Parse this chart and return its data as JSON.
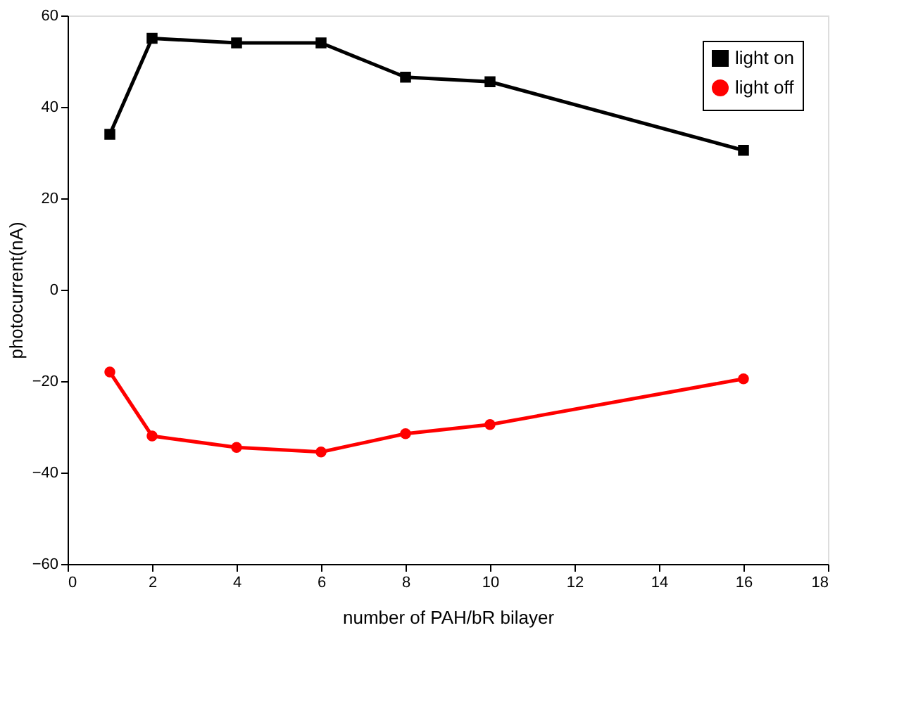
{
  "chart_data": {
    "type": "line",
    "xlabel": "number of PAH/bR bilayer",
    "ylabel": "photocurrent(nA)",
    "x": [
      1,
      2,
      4,
      6,
      8,
      10,
      16
    ],
    "series": [
      {
        "name": "light on",
        "color": "#000000",
        "marker": "square",
        "values": [
          34,
          55,
          54,
          54,
          46.5,
          45.5,
          30.5
        ]
      },
      {
        "name": "light off",
        "color": "#ff0000",
        "marker": "circle",
        "values": [
          -18,
          -32,
          -34.5,
          -35.5,
          -31.5,
          -29.5,
          -19.5
        ]
      }
    ],
    "xlim": [
      0,
      18
    ],
    "xticks": [
      0,
      2,
      4,
      6,
      8,
      10,
      12,
      14,
      16,
      18
    ],
    "ylim": [
      -60,
      60
    ],
    "yticks": [
      -60,
      -40,
      -20,
      0,
      20,
      40,
      60
    ],
    "grid": false,
    "legend": "top right",
    "line_style": "solid"
  }
}
